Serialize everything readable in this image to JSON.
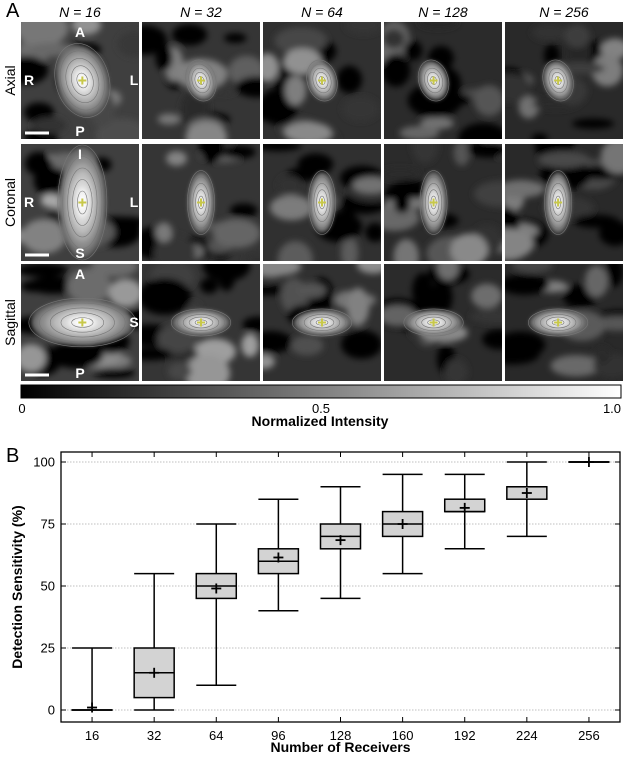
{
  "panel_a": {
    "label": "A",
    "columns": [
      "N = 16",
      "N = 32",
      "N = 64",
      "N = 128",
      "N = 256"
    ],
    "rows": [
      {
        "name": "Axial",
        "orient": {
          "top": "A",
          "bottom": "P",
          "left": "R",
          "right": "L"
        }
      },
      {
        "name": "Coronal",
        "orient": {
          "top": "I",
          "bottom": "S",
          "left": "R",
          "right": "L"
        }
      },
      {
        "name": "Sagittal",
        "orient": {
          "top": "A",
          "bottom": "P",
          "left": "",
          "right": "S"
        }
      }
    ],
    "colorbar": {
      "ticks": [
        "0",
        "0.5",
        "1.0"
      ],
      "title": "Normalized Intensity"
    },
    "marker_color": "#c8c84a"
  },
  "panel_b": {
    "label": "B"
  },
  "chart_data": {
    "type": "box",
    "title": "",
    "xlabel": "Number of Receivers",
    "ylabel": "Detection Sensitivity (%)",
    "ylim": [
      0,
      100
    ],
    "yticks": [
      0,
      25,
      50,
      75,
      100
    ],
    "grid": true,
    "categories": [
      "16",
      "32",
      "64",
      "96",
      "128",
      "160",
      "192",
      "224",
      "256"
    ],
    "boxes": [
      {
        "min": 0,
        "q1": 0,
        "median": 0,
        "q3": 0,
        "max": 25,
        "mean": 1
      },
      {
        "min": 0,
        "q1": 5,
        "median": 15,
        "q3": 25,
        "max": 55,
        "mean": 15
      },
      {
        "min": 10,
        "q1": 45,
        "median": 50,
        "q3": 55,
        "max": 75,
        "mean": 49
      },
      {
        "min": 40,
        "q1": 55,
        "median": 60,
        "q3": 65,
        "max": 85,
        "mean": 61.5
      },
      {
        "min": 45,
        "q1": 65,
        "median": 70,
        "q3": 75,
        "max": 90,
        "mean": 68.5
      },
      {
        "min": 55,
        "q1": 70,
        "median": 75,
        "q3": 80,
        "max": 95,
        "mean": 75
      },
      {
        "min": 65,
        "q1": 80,
        "median": 80,
        "q3": 85,
        "max": 95,
        "mean": 81.5
      },
      {
        "min": 70,
        "q1": 85,
        "median": 90,
        "q3": 90,
        "max": 100,
        "mean": 87.5
      },
      {
        "min": 100,
        "q1": 100,
        "median": 100,
        "q3": 100,
        "max": 100,
        "mean": 100
      }
    ],
    "box_fill": "#d3d3d3",
    "grid_color": "#aaaaaa"
  }
}
